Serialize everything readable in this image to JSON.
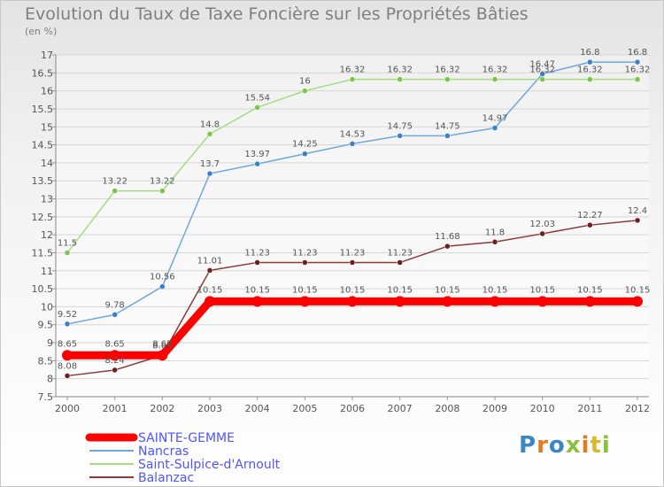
{
  "header": {
    "title": "Evolution du Taux de Taxe Foncière sur les Propriétés Bâties",
    "subtitle": "(en %)"
  },
  "brand": {
    "logo_text": "Proxiti",
    "letter_colors": [
      "#3a87c8",
      "#e07b20",
      "#3a87c8",
      "#88c23a",
      "#e07b20",
      "#d9b92a",
      "#88c23a"
    ]
  },
  "chart_data": {
    "type": "line",
    "title": "Evolution du Taux de Taxe Foncière sur les Propriétés Bâties",
    "ylabel": "(en %)",
    "xlabel": "",
    "x": [
      2000,
      2001,
      2002,
      2003,
      2004,
      2005,
      2006,
      2007,
      2008,
      2009,
      2010,
      2011,
      2012
    ],
    "ylim": [
      7.5,
      17
    ],
    "yticks": [
      7.5,
      8,
      8.5,
      9,
      9.5,
      10,
      10.5,
      11,
      11.5,
      12,
      12.5,
      13,
      13.5,
      14,
      14.5,
      15,
      15.5,
      16,
      16.5,
      17
    ],
    "grid": "horizontal",
    "legend_position": "bottom-left",
    "series": [
      {
        "name": "SAINTE-GEMME",
        "color": "#ff0000",
        "marker_color": "#ff0000",
        "values": [
          8.65,
          8.65,
          8.65,
          10.15,
          10.15,
          10.15,
          10.15,
          10.15,
          10.15,
          10.15,
          10.15,
          10.15,
          10.15
        ],
        "labels": [
          "8.65",
          "8.65",
          "8.65",
          "10.15",
          "10.15",
          "10.15",
          "10.15",
          "10.15",
          "10.15",
          "10.15",
          "10.15",
          "10.15",
          "10.15"
        ]
      },
      {
        "name": "Nancras",
        "color": "#6fa8dc",
        "marker_color": "#3b7fc4",
        "values": [
          9.52,
          9.78,
          10.56,
          13.7,
          13.97,
          14.25,
          14.53,
          14.75,
          14.75,
          14.97,
          16.47,
          16.8,
          16.8
        ],
        "labels": [
          "9.52",
          "9.78",
          "10.56",
          "13.7",
          "13.97",
          "14.25",
          "14.53",
          "14.75",
          "14.75",
          "14.97",
          "16.47",
          "16.8",
          "16.8"
        ]
      },
      {
        "name": "Saint-Sulpice-d'Arnoult",
        "color": "#a6dc84",
        "marker_color": "#79c64a",
        "values": [
          11.5,
          13.22,
          13.22,
          14.8,
          15.54,
          16.0,
          16.32,
          16.32,
          16.32,
          16.32,
          16.32,
          16.32,
          16.32
        ],
        "labels": [
          "11.5",
          "13.22",
          "13.22",
          "14.8",
          "15.54",
          "16",
          "16.32",
          "16.32",
          "16.32",
          "16.32",
          "16.32",
          "16.32",
          "16.32"
        ]
      },
      {
        "name": "Balanzac",
        "color": "#8b3a3a",
        "marker_color": "#6b1f1f",
        "values": [
          8.08,
          8.24,
          8.65,
          11.01,
          11.23,
          11.23,
          11.23,
          11.23,
          11.68,
          11.8,
          12.03,
          12.27,
          12.4
        ],
        "labels": [
          "8.08",
          "8.24",
          "8.65",
          "11.01",
          "11.23",
          "11.23",
          "11.23",
          "11.23",
          "11.68",
          "11.8",
          "12.03",
          "12.27",
          "12.4"
        ]
      }
    ]
  }
}
